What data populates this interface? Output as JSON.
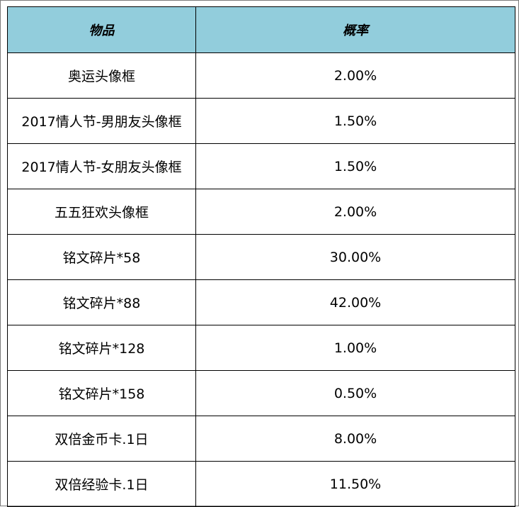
{
  "table": {
    "headers": {
      "item": "物品",
      "probability": "概率"
    },
    "rows": [
      {
        "item": "奥运头像框",
        "probability": "2.00%"
      },
      {
        "item": "2017情人节-男朋友头像框",
        "probability": "1.50%"
      },
      {
        "item": "2017情人节-女朋友头像框",
        "probability": "1.50%"
      },
      {
        "item": "五五狂欢头像框",
        "probability": "2.00%"
      },
      {
        "item": "铭文碎片*58",
        "probability": "30.00%"
      },
      {
        "item": "铭文碎片*88",
        "probability": "42.00%"
      },
      {
        "item": "铭文碎片*128",
        "probability": "1.00%"
      },
      {
        "item": "铭文碎片*158",
        "probability": "0.50%"
      },
      {
        "item": "双倍金币卡.1日",
        "probability": "8.00%"
      },
      {
        "item": "双倍经验卡.1日",
        "probability": "11.50%"
      }
    ],
    "colors": {
      "header_background": "#92cddc",
      "border": "#000000",
      "frame_border": "#7a7a7a"
    }
  }
}
